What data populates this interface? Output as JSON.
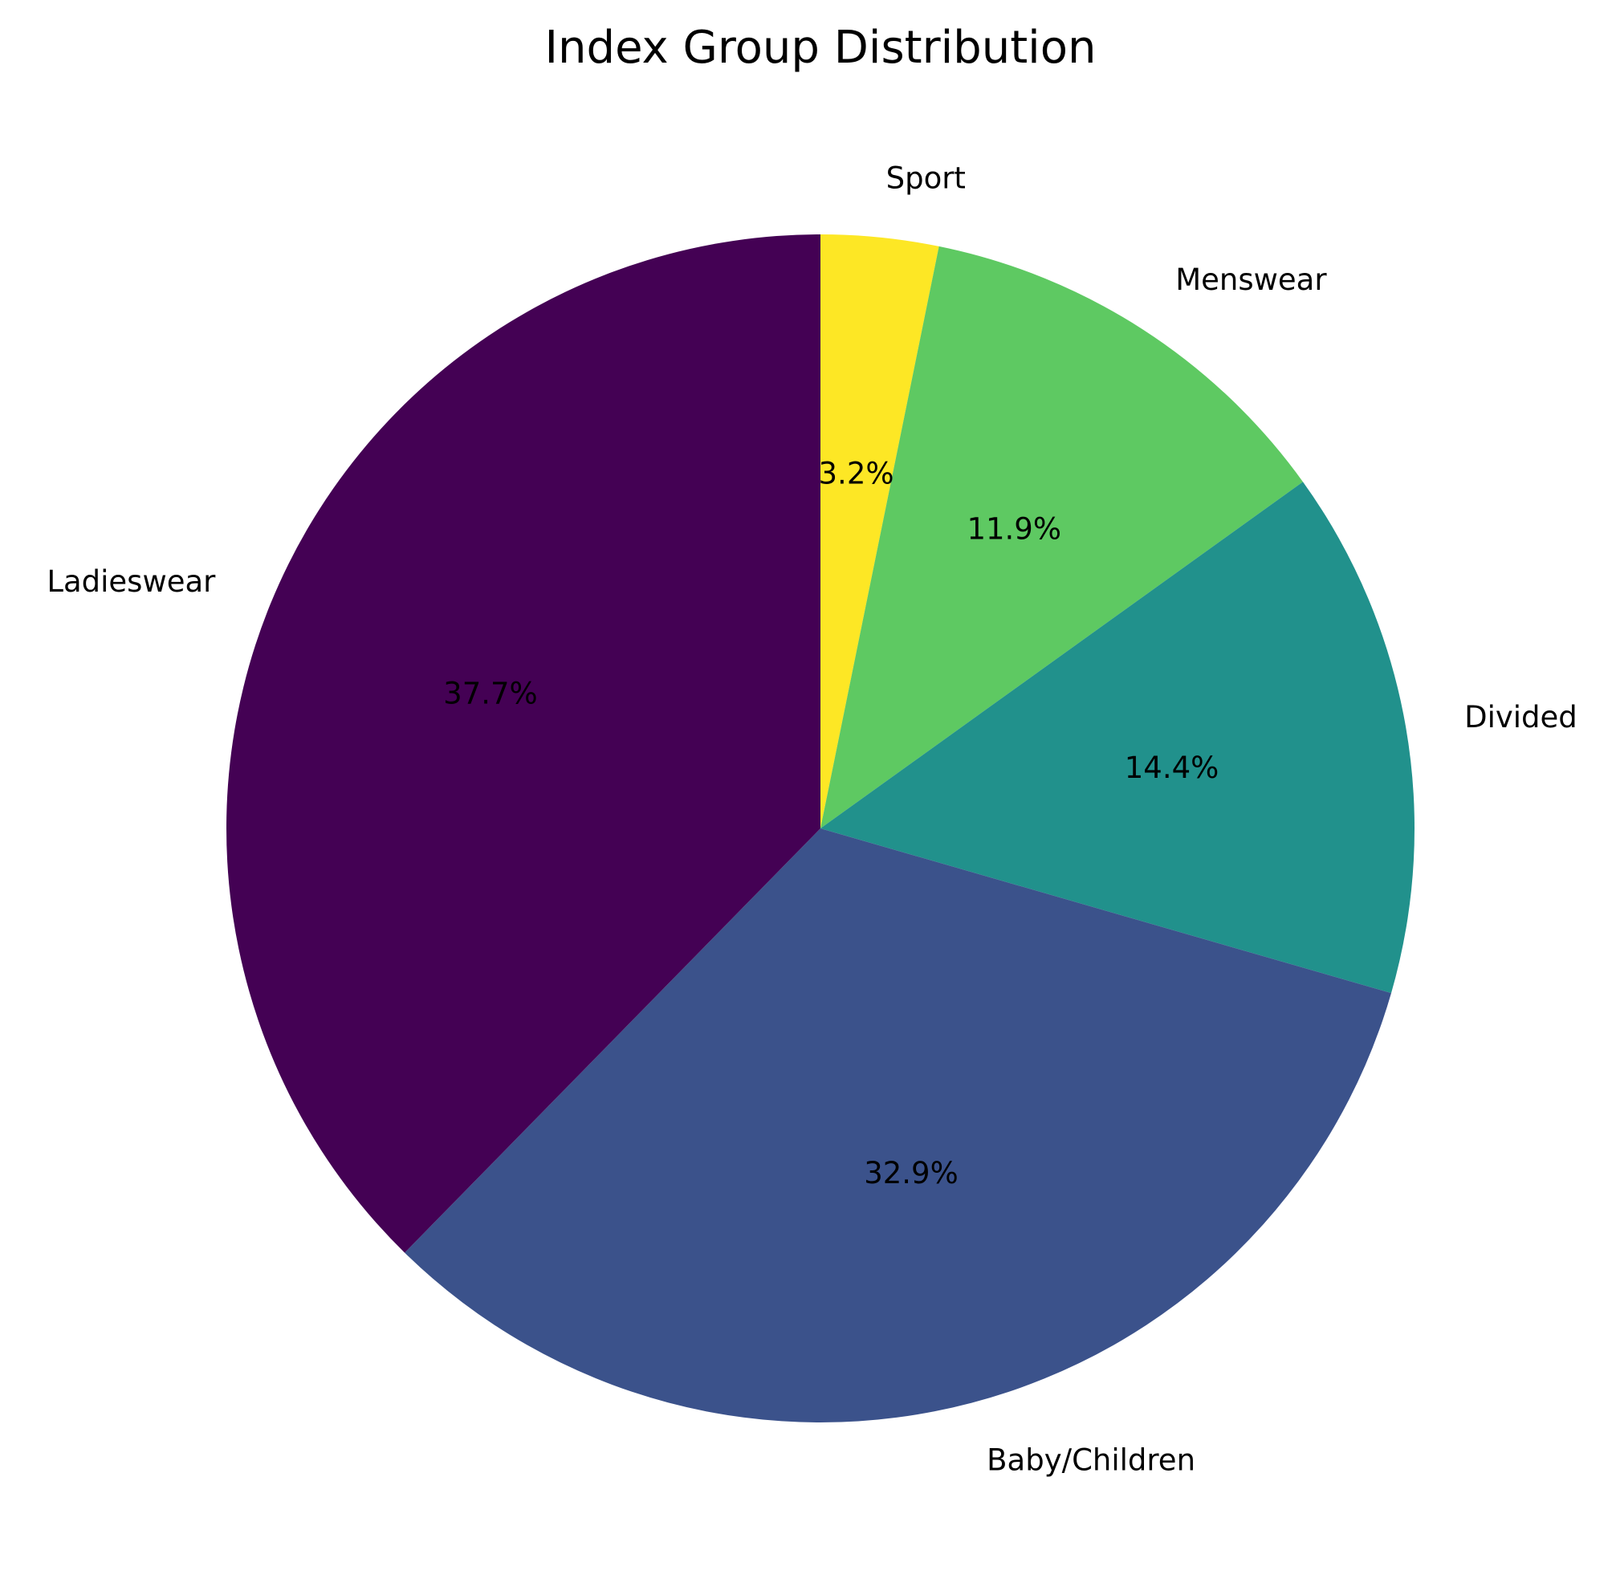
{
  "chart_data": {
    "type": "pie",
    "title": "Index Group Distribution",
    "start_angle_deg": 90,
    "direction": "clockwise",
    "slices": [
      {
        "label": "Sport",
        "value": 3.2,
        "pct_label": "3.2%",
        "color": "#fde725"
      },
      {
        "label": "Menswear",
        "value": 11.9,
        "pct_label": "11.9%",
        "color": "#5ec962"
      },
      {
        "label": "Divided",
        "value": 14.4,
        "pct_label": "14.4%",
        "color": "#21918c"
      },
      {
        "label": "Baby/Children",
        "value": 32.9,
        "pct_label": "32.9%",
        "color": "#3b528b"
      },
      {
        "label": "Ladieswear",
        "value": 37.7,
        "pct_label": "37.7%",
        "color": "#440154"
      }
    ]
  }
}
